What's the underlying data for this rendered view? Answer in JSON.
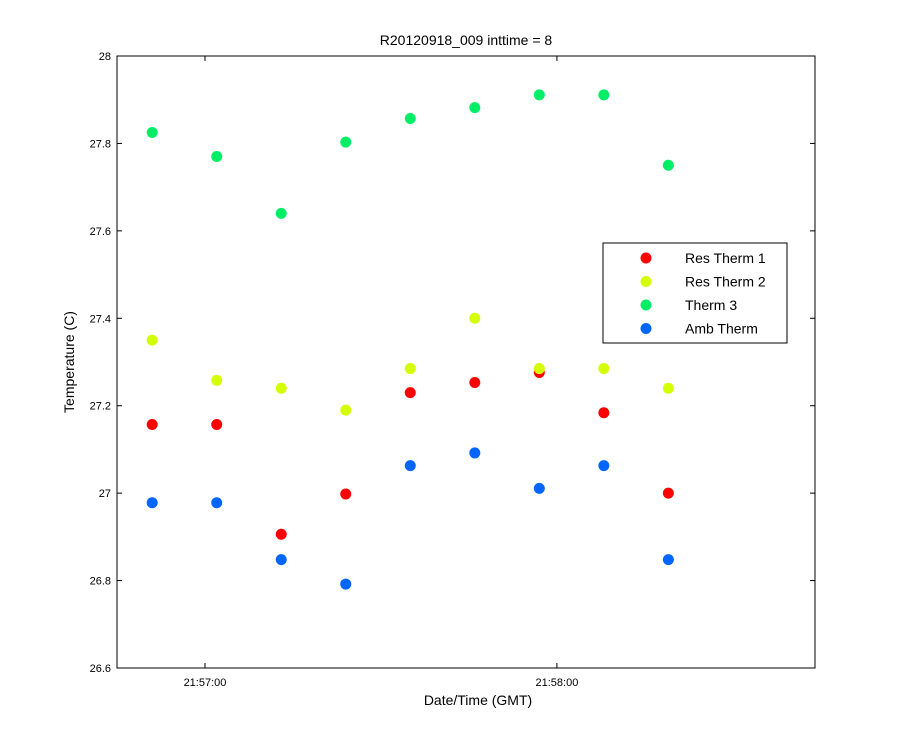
{
  "chart_data": {
    "type": "scatter",
    "title": "R20120918_009 inttime = 8",
    "xlabel": "Date/Time (GMT)",
    "ylabel": "Temperature (C)",
    "xlim": [
      "21:56:45",
      "21:58:44"
    ],
    "ylim": [
      26.6,
      28
    ],
    "x_ticks": [
      "21:57:00",
      "21:58:00"
    ],
    "y_ticks": [
      "26.6",
      "26.8",
      "27",
      "27.2",
      "27.4",
      "27.6",
      "27.8",
      "28"
    ],
    "grid": false,
    "legend_position": "right",
    "x": [
      "21:56:51",
      "21:57:02",
      "21:57:13",
      "21:57:24",
      "21:57:35",
      "21:57:46",
      "21:57:57",
      "21:58:08",
      "21:58:19"
    ],
    "series": [
      {
        "name": "Res Therm 1",
        "color": "#ff0000",
        "values": [
          27.157,
          27.157,
          26.906,
          26.998,
          27.23,
          27.253,
          27.276,
          27.184,
          27.0
        ]
      },
      {
        "name": "Res Therm 2",
        "color": "#d4ff00",
        "values": [
          27.35,
          27.258,
          27.24,
          27.19,
          27.285,
          27.4,
          27.285,
          27.285,
          27.24
        ]
      },
      {
        "name": "Therm 3",
        "color": "#00ee66",
        "values": [
          27.825,
          27.77,
          27.64,
          27.803,
          27.857,
          27.882,
          27.911,
          27.911,
          27.75
        ]
      },
      {
        "name": "Amb Therm",
        "color": "#0066ff",
        "values": [
          26.978,
          26.978,
          26.848,
          26.792,
          27.063,
          27.092,
          27.011,
          27.063,
          26.848
        ]
      }
    ]
  }
}
